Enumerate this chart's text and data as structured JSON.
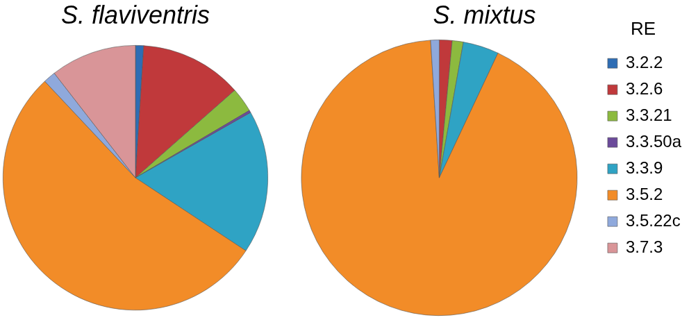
{
  "chart_data": [
    {
      "type": "pie",
      "title": "S. flaviventris",
      "categories": [
        null,
        null,
        null,
        null,
        null,
        null,
        null,
        null
      ],
      "values": [
        1,
        12.5,
        3,
        0.3,
        17.5,
        53.7,
        1.5,
        10.5
      ],
      "colors": [
        "#2e6db4",
        "#c0393b",
        "#8cba3f",
        "#6b4a9a",
        "#2fa3c4",
        "#f28c28",
        "#8fa9dc",
        "#d99598"
      ],
      "legend": false
    },
    {
      "type": "pie",
      "title": "S. mixtus",
      "categories": [
        "3.2.2",
        "3.2.6",
        "3.3.21",
        "3.3.50a",
        "3.3.9",
        "3.5.2",
        "3.5.22c",
        "3.7.3"
      ],
      "values": [
        0,
        1.5,
        1.3,
        0,
        4.2,
        92,
        1,
        0
      ],
      "colors": [
        "#2e6db4",
        "#c0393b",
        "#8cba3f",
        "#6b4a9a",
        "#2fa3c4",
        "#f28c28",
        "#8fa9dc",
        "#d99598"
      ],
      "legend": "right",
      "legend_title": "RE"
    }
  ]
}
